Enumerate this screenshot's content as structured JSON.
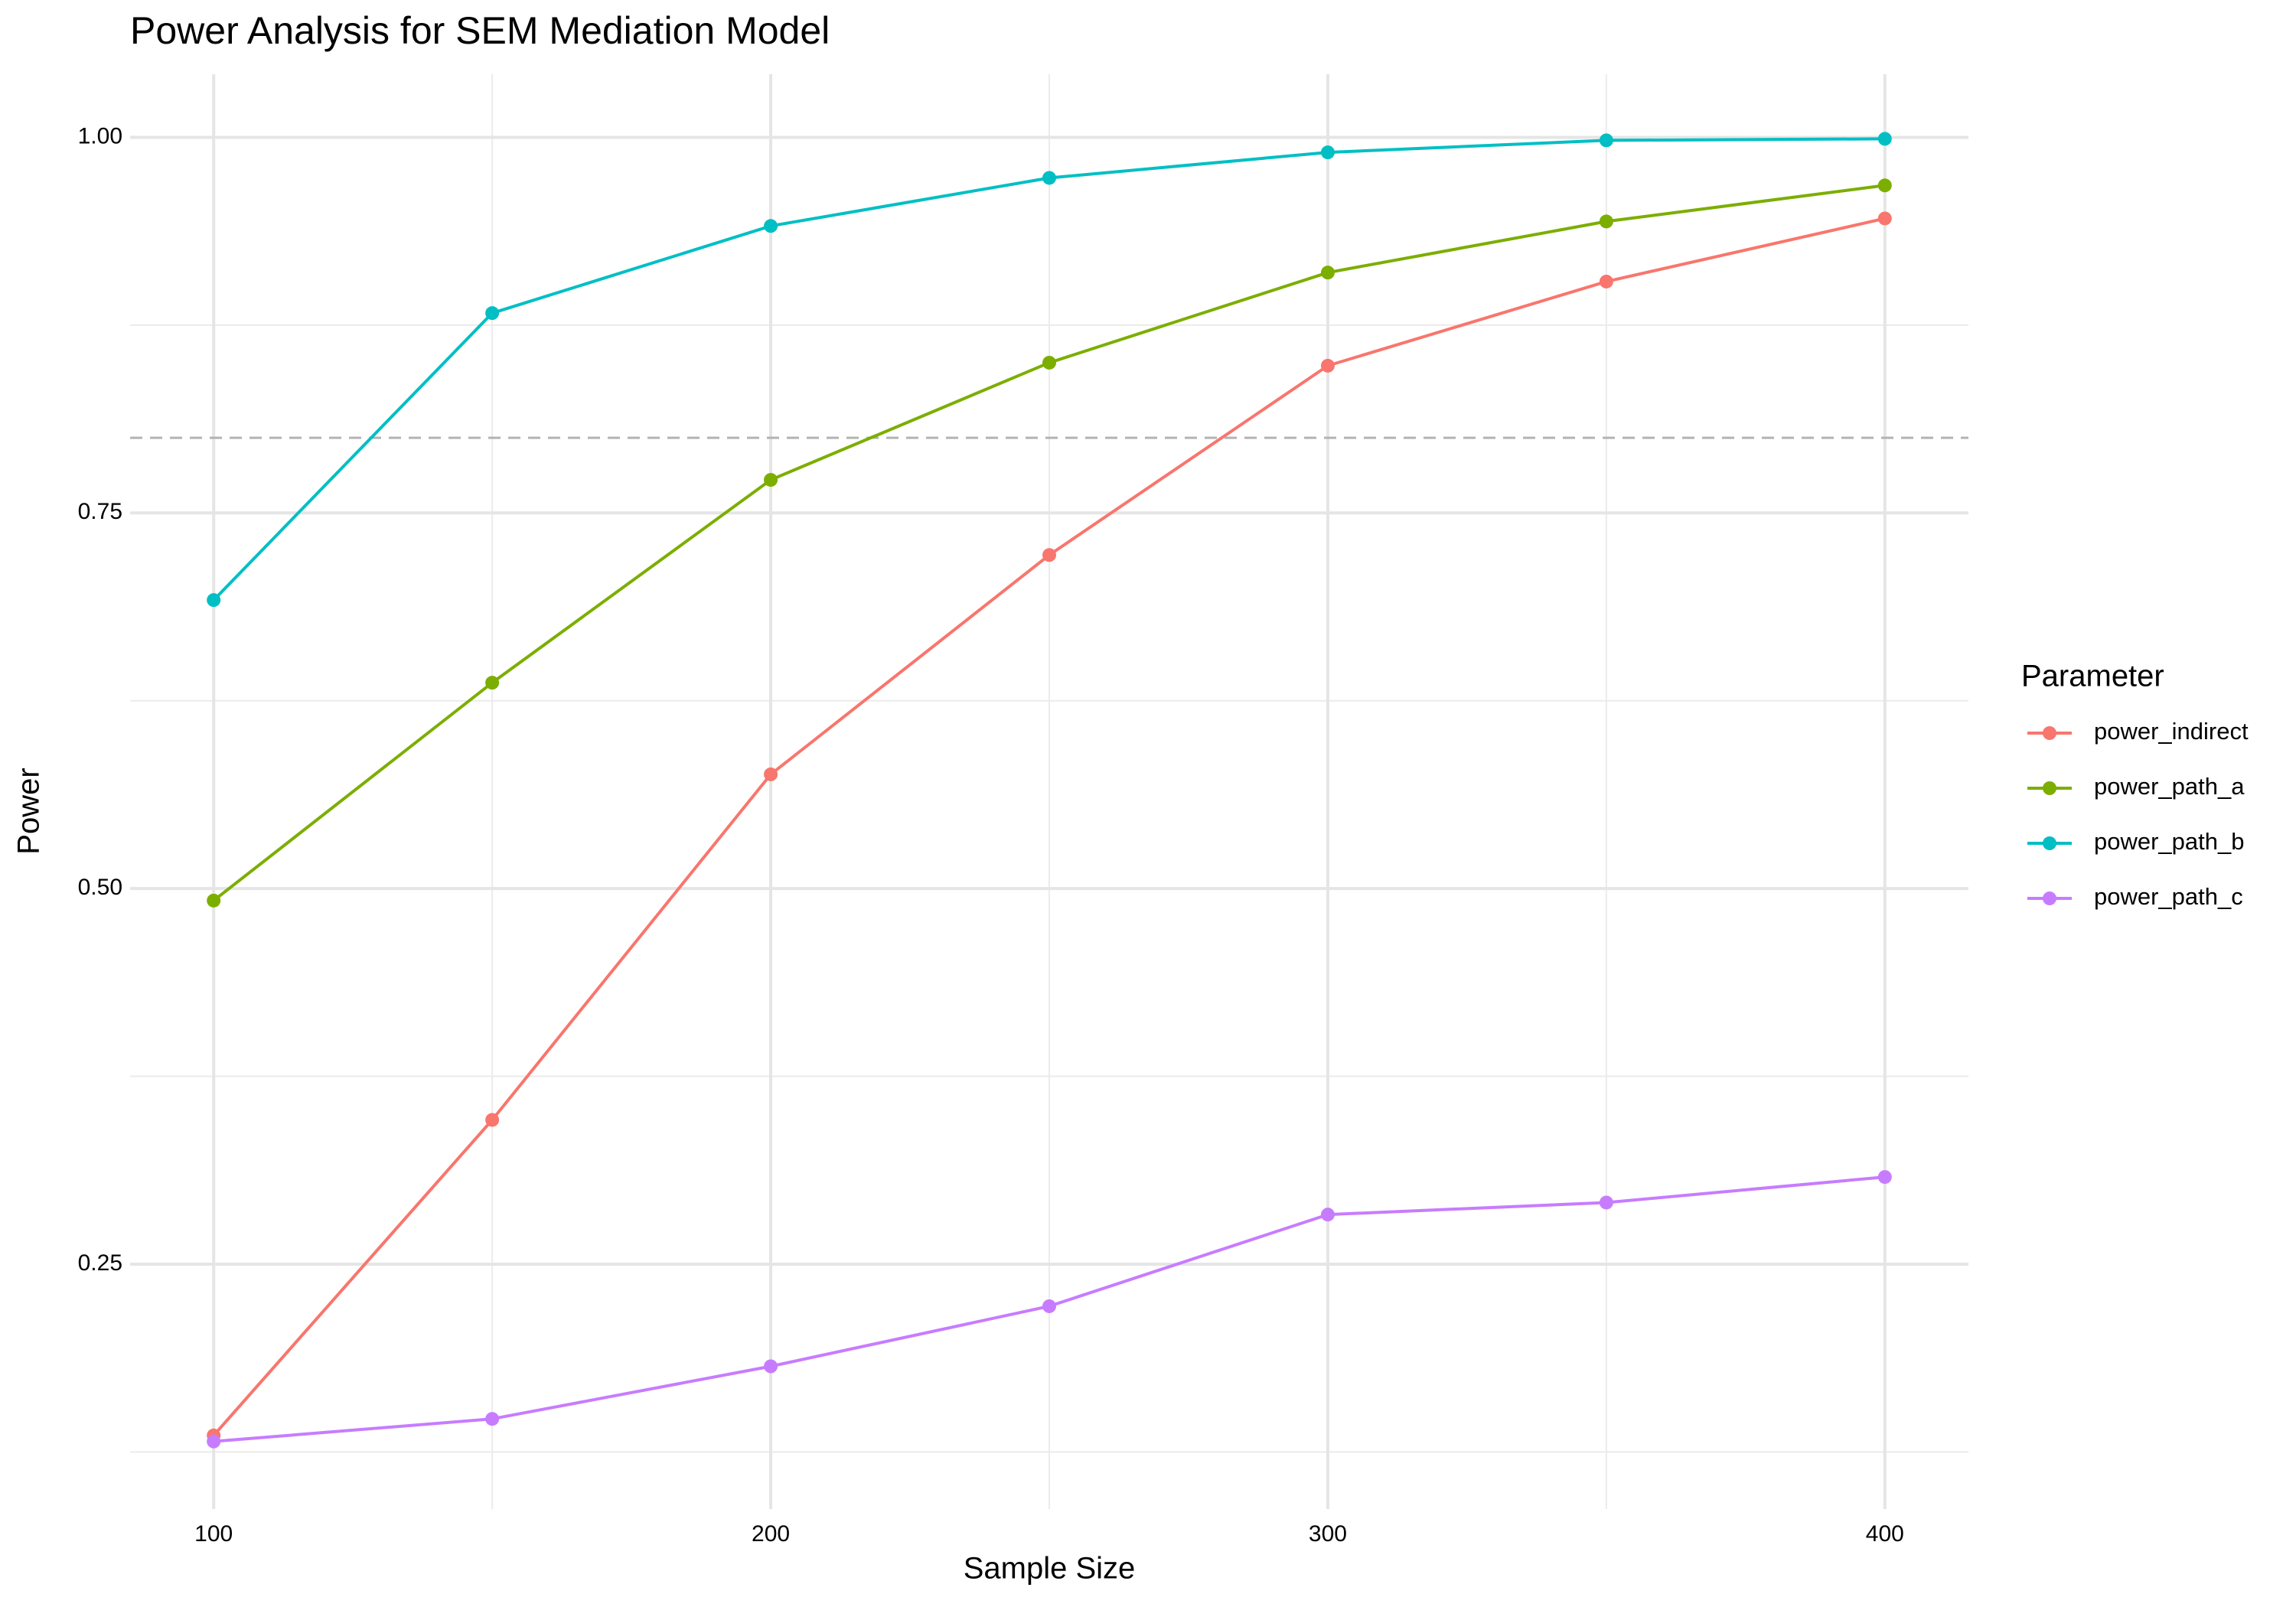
{
  "chart_data": {
    "type": "line",
    "title": "Power Analysis for SEM Mediation Model",
    "x_label": "Sample Size",
    "y_label": "Power",
    "legend_title": "Parameter",
    "legend_position": "right",
    "x": [
      100,
      150,
      200,
      250,
      300,
      350,
      400
    ],
    "series": [
      {
        "name": "power_indirect",
        "color": "#F8766D",
        "values": [
          0.136,
          0.346,
          0.576,
          0.722,
          0.848,
          0.904,
          0.946
        ]
      },
      {
        "name": "power_path_a",
        "color": "#7CAE00",
        "values": [
          0.492,
          0.637,
          0.772,
          0.85,
          0.91,
          0.944,
          0.968
        ]
      },
      {
        "name": "power_path_b",
        "color": "#00BFC4",
        "values": [
          0.692,
          0.883,
          0.941,
          0.973,
          0.99,
          0.998,
          0.999
        ]
      },
      {
        "name": "power_path_c",
        "color": "#C77CFF",
        "values": [
          0.132,
          0.147,
          0.182,
          0.222,
          0.283,
          0.291,
          0.308
        ]
      }
    ],
    "reference_line": 0.8,
    "xlim": [
      85,
      415
    ],
    "xticks": [
      100,
      200,
      300,
      400
    ],
    "x_minor_ticks": [
      150,
      250,
      350
    ],
    "ylim": [
      0.087,
      1.042
    ],
    "yticks": [
      0.25,
      {
        "value": 0.5,
        "label": "0.50"
      },
      0.75,
      {
        "value": 1,
        "label": "1.00"
      }
    ],
    "y_minor_ticks": [
      0.125,
      0.375,
      0.625,
      0.875
    ],
    "grid": true
  }
}
